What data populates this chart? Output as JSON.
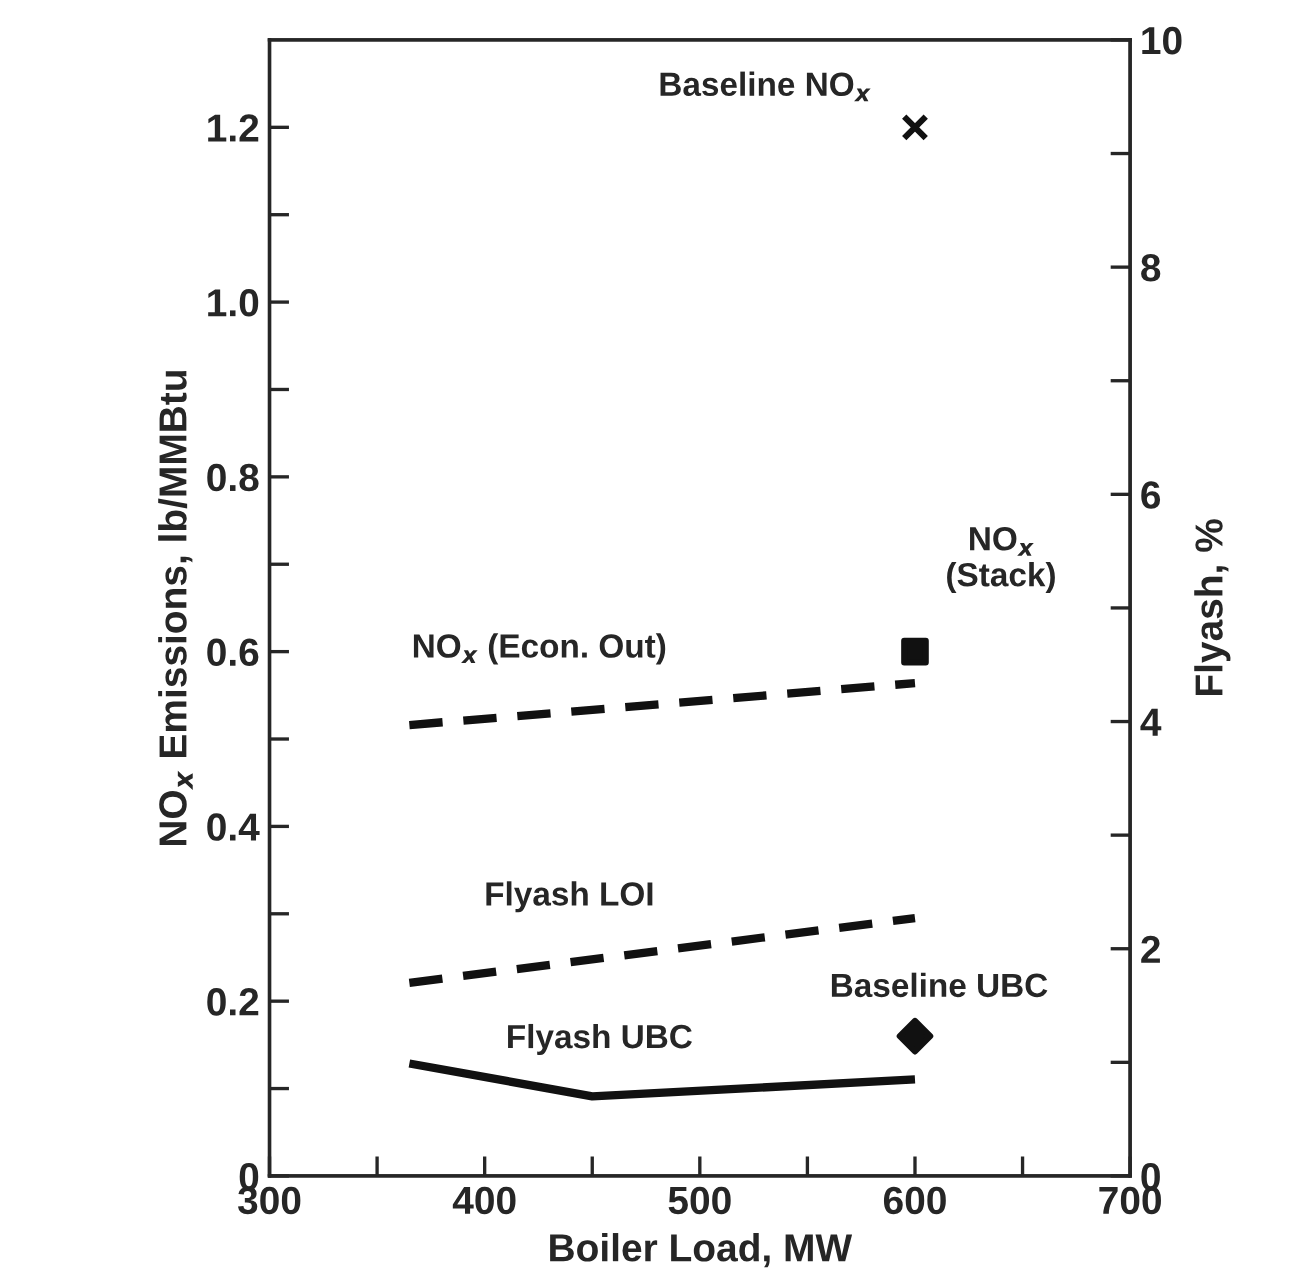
{
  "chart_data": {
    "type": "line",
    "xlabel": "Boiler Load, MW",
    "ylabel": "NO$_{x}$ Emissions, lb/MMBtu",
    "y2label": "Flyash, %",
    "xlim": [
      300,
      700
    ],
    "xticks": [
      300,
      {
        "value": 350,
        "label": null
      },
      400,
      {
        "value": 450,
        "label": null
      },
      500,
      {
        "value": 550,
        "label": null
      },
      600,
      {
        "value": 650,
        "label": null
      },
      700
    ],
    "ylim": [
      0,
      1.3
    ],
    "yticks": [
      0,
      {
        "value": 0.1,
        "label": null
      },
      {
        "value": 0.2,
        "label": "0.2"
      },
      {
        "value": 0.3,
        "label": null
      },
      {
        "value": 0.4,
        "label": "0.4"
      },
      {
        "value": 0.5,
        "label": null
      },
      {
        "value": 0.6,
        "label": "0.6"
      },
      {
        "value": 0.7,
        "label": null
      },
      {
        "value": 0.8,
        "label": "0.8"
      },
      {
        "value": 0.9,
        "label": null
      },
      {
        "value": 1.0,
        "label": "1.0"
      },
      {
        "value": 1.1,
        "label": null
      },
      {
        "value": 1.2,
        "label": "1.2"
      }
    ],
    "y2lim": [
      0,
      10
    ],
    "y2ticks": [
      0,
      {
        "value": 1,
        "label": null
      },
      2,
      {
        "value": 3,
        "label": null
      },
      4,
      {
        "value": 5,
        "label": null
      },
      6,
      {
        "value": 7,
        "label": null
      },
      8,
      {
        "value": 9,
        "label": null
      },
      10
    ],
    "grid": false,
    "legend": false,
    "series": [
      {
        "name": "Baseline NO$_{x}$",
        "type": "scatter",
        "marker": "cross",
        "color": "#111111",
        "x": [
          600
        ],
        "values": [
          1.2
        ]
      },
      {
        "name": "NO$_{x}$\n(Stack)",
        "type": "scatter",
        "marker": "square",
        "color": "#111111",
        "x": [
          600
        ],
        "values": [
          0.6
        ]
      },
      {
        "name": "NO$_{x}$ (Econ. Out)",
        "type": "line",
        "line_style": "dashed",
        "marker": "none",
        "color": "#111111",
        "x": [
          365,
          600
        ],
        "values": [
          0.516,
          0.564
        ]
      },
      {
        "name": "Flyash LOI",
        "type": "line",
        "axis": "y2",
        "line_style": "dashed",
        "marker": "none",
        "color": "#111111",
        "x": [
          365,
          600
        ],
        "values": [
          1.7,
          2.27
        ]
      },
      {
        "name": "Baseline UBC",
        "type": "scatter",
        "axis": "y2",
        "marker": "diamond",
        "color": "#111111",
        "x": [
          600
        ],
        "values": [
          1.23
        ]
      },
      {
        "name": "Flyash UBC",
        "type": "line",
        "axis": "y2",
        "line_style": "solid",
        "marker": "none",
        "color": "#111111",
        "x": [
          365,
          450,
          600
        ],
        "values": [
          0.99,
          0.7,
          0.85
        ]
      }
    ]
  }
}
